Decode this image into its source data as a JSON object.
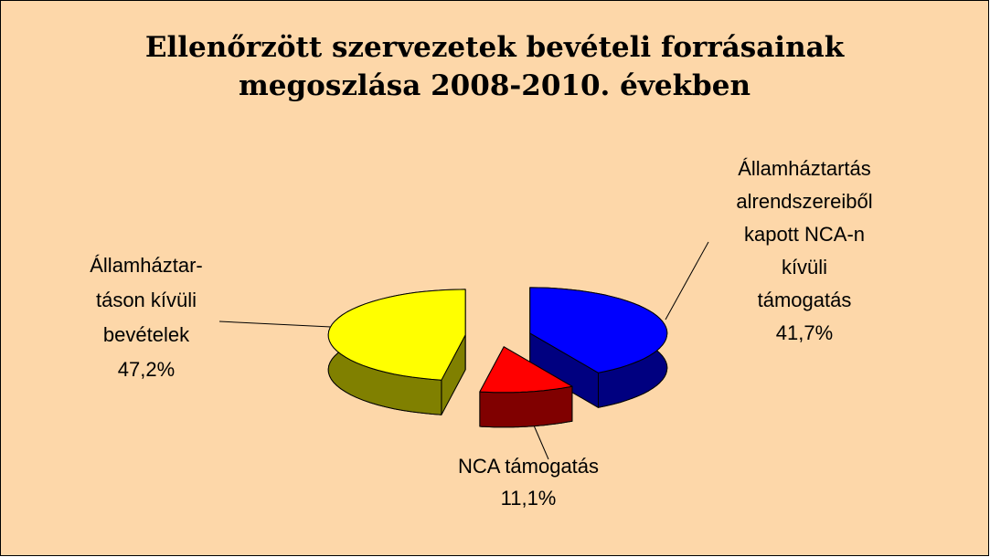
{
  "chart_data": {
    "type": "pie3d",
    "title": [
      "Ellenőrzött szervezetek bevételi forrásainak",
      "megoszlása 2008-2010. években"
    ],
    "categories": [
      [
        "Államháztartás",
        "alrendszereiből",
        "kapott NCA-n",
        "kívüli",
        "támogatás"
      ],
      [
        "NCA támogatás"
      ],
      [
        "Államháztar-",
        "táson kívüli",
        "bevételek"
      ]
    ],
    "values": [
      41.7,
      11.1,
      47.2
    ],
    "value_labels": [
      "41,7%",
      "11,1%",
      "47,2%"
    ],
    "colors": [
      "#0000ff",
      "#ff0000",
      "#ffff00"
    ],
    "side_colors": [
      "#000080",
      "#800000",
      "#808000"
    ],
    "background": "#fdd7a9"
  }
}
